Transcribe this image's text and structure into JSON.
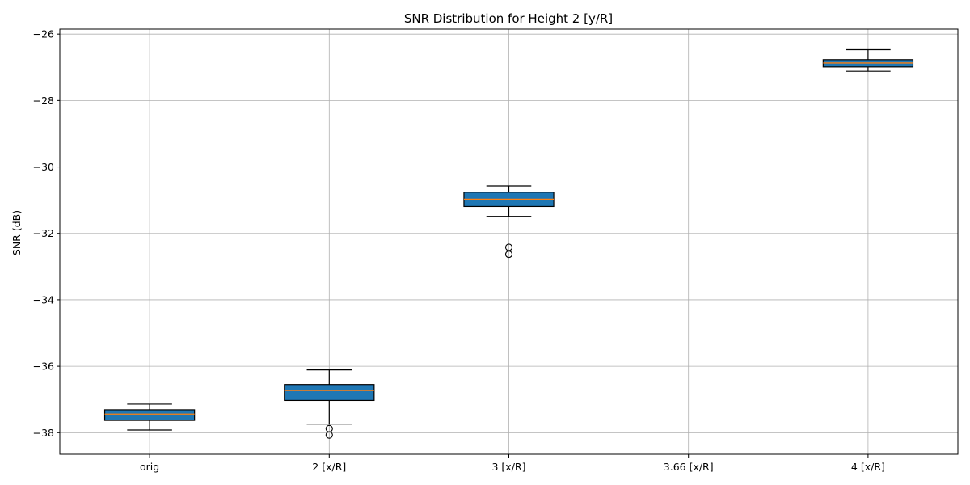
{
  "chart_data": {
    "type": "box",
    "title": "SNR Distribution for Height 2 [y/R]",
    "xlabel": "",
    "ylabel": "SNR (dB)",
    "ylim": [
      -38.65,
      -25.85
    ],
    "yticks": [
      -38,
      -36,
      -34,
      -32,
      -30,
      -28,
      -26
    ],
    "grid": true,
    "categories": [
      "orig",
      "2 [x/R]",
      "3 [x/R]",
      "3.66 [x/R]",
      "4 [x/R]"
    ],
    "boxes": [
      {
        "category": "orig",
        "whisker_low": -37.92,
        "q1": -37.63,
        "median": -37.44,
        "q3": -37.31,
        "whisker_high": -37.14,
        "outliers": []
      },
      {
        "category": "2 [x/R]",
        "whisker_low": -37.74,
        "q1": -37.03,
        "median": -36.73,
        "q3": -36.55,
        "whisker_high": -36.11,
        "outliers": [
          -37.88,
          -38.07
        ]
      },
      {
        "category": "3 [x/R]",
        "whisker_low": -31.49,
        "q1": -31.19,
        "median": -30.97,
        "q3": -30.76,
        "whisker_high": -30.57,
        "outliers": [
          -32.42,
          -32.63
        ]
      },
      {
        "category": "3.66 [x/R]",
        "empty": true
      },
      {
        "category": "4 [x/R]",
        "whisker_low": -27.12,
        "q1": -26.99,
        "median": -26.87,
        "q3": -26.77,
        "whisker_high": -26.47,
        "outliers": []
      }
    ],
    "colors": {
      "box_fill": "#1f77b4",
      "median": "#ff7f0e",
      "grid": "#b0b0b0"
    }
  }
}
